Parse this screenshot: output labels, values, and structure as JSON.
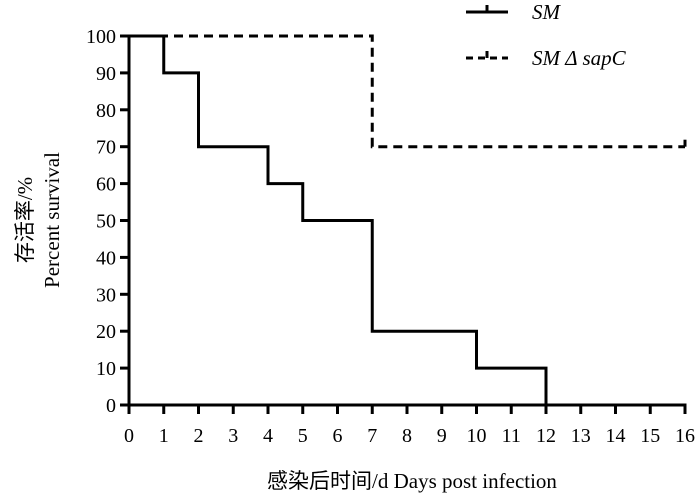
{
  "chart_data": {
    "type": "line",
    "step": true,
    "x": [
      0,
      1,
      2,
      3,
      4,
      5,
      6,
      7,
      8,
      9,
      10,
      11,
      12,
      13,
      14,
      15,
      16
    ],
    "xlim": [
      0,
      16
    ],
    "ylim": [
      0,
      100
    ],
    "xticks": [
      0,
      1,
      2,
      3,
      4,
      5,
      6,
      7,
      8,
      9,
      10,
      11,
      12,
      13,
      14,
      15,
      16
    ],
    "yticks": [
      0,
      10,
      20,
      30,
      40,
      50,
      60,
      70,
      80,
      90,
      100
    ],
    "xlabel": "感染后时间/d  Days post infection",
    "ylabel_cn": "存活率/%",
    "ylabel_en": "Percent survival",
    "legend_position": "top-right",
    "series": [
      {
        "name": "SM",
        "style": "solid",
        "color": "#000000",
        "points": [
          [
            0,
            100
          ],
          [
            1,
            90
          ],
          [
            2,
            70
          ],
          [
            4,
            60
          ],
          [
            5,
            50
          ],
          [
            7,
            20
          ],
          [
            10,
            10
          ],
          [
            12,
            0
          ]
        ],
        "end_x": 12
      },
      {
        "name": "SM Δ sapC",
        "style": "dashed",
        "color": "#000000",
        "points": [
          [
            0,
            100
          ],
          [
            7,
            70
          ]
        ],
        "end_x": 16
      }
    ]
  }
}
